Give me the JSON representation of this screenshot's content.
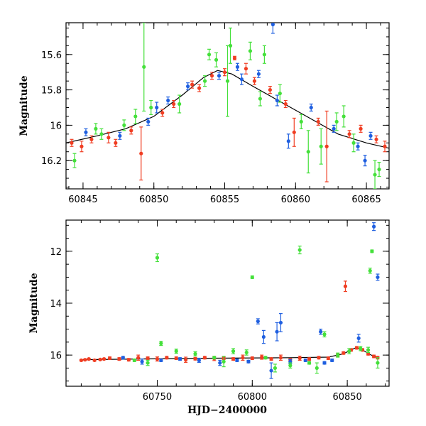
{
  "colors": {
    "green": "#44e03a",
    "blue": "#1f5fe0",
    "red": "#f03d22",
    "line": "#000000"
  },
  "chart_data": [
    {
      "type": "scatter",
      "name": "top-panel",
      "xlim": [
        60843.8,
        60866.6
      ],
      "ylim": [
        16.36,
        15.42
      ],
      "xticks": [
        60845,
        60850,
        60855,
        60860,
        60865
      ],
      "yticks": [
        15.6,
        15.8,
        16,
        16.2
      ],
      "xtick_labels": [
        "60845",
        "60850",
        "60855",
        "60860",
        "60865"
      ],
      "ytick_labels": [
        "15.6",
        "15.8",
        "16",
        "16.2"
      ],
      "xlabel": "",
      "ylabel": "Magnitude",
      "model_curve": {
        "x": [
          60843.8,
          60846,
          60848,
          60850,
          60852,
          60853.5,
          60854.5,
          60855.5,
          60857,
          60859,
          60861,
          60863,
          60865,
          60866.6
        ],
        "y": [
          16.1,
          16.06,
          16.02,
          15.95,
          15.83,
          15.73,
          15.69,
          15.71,
          15.78,
          15.87,
          15.96,
          16.05,
          16.1,
          16.13
        ]
      },
      "series": [
        {
          "color": "red",
          "x": [
            60844.2,
            60844.9,
            60845.6,
            60846.8,
            60847.3,
            60848.4,
            60849.1,
            60850.6,
            60851.4,
            60852.7,
            60853.2,
            60854.1,
            60855.0,
            60855.7,
            60856.5,
            60857.1,
            60858.2,
            60859.3,
            60859.9,
            60861.6,
            60862.2,
            60863.8,
            60864.6,
            60865.7,
            60866.3
          ],
          "y": [
            16.1,
            16.12,
            16.08,
            16.07,
            16.1,
            16.03,
            16.16,
            15.93,
            15.88,
            15.77,
            15.79,
            15.72,
            15.7,
            15.62,
            15.68,
            15.75,
            15.8,
            15.88,
            16.04,
            15.98,
            16.12,
            16.05,
            16.02,
            16.08,
            16.12
          ],
          "err": [
            0.02,
            0.03,
            0.02,
            0.03,
            0.02,
            0.02,
            0.15,
            0.02,
            0.02,
            0.02,
            0.02,
            0.02,
            0.02,
            0.01,
            0.03,
            0.02,
            0.02,
            0.02,
            0.08,
            0.02,
            0.2,
            0.02,
            0.02,
            0.02,
            0.03
          ]
        },
        {
          "color": "blue",
          "x": [
            60845.2,
            60847.6,
            60849.6,
            60850.2,
            60851.0,
            60852.4,
            60854.6,
            60855.9,
            60856.2,
            60857.4,
            60858.4,
            60858.7,
            60859.5,
            60861.1,
            60862.7,
            60864.4,
            60864.9,
            60865.3
          ],
          "y": [
            16.04,
            16.06,
            15.98,
            15.9,
            15.86,
            15.78,
            15.72,
            15.67,
            15.74,
            15.71,
            15.43,
            15.86,
            16.09,
            15.9,
            16.02,
            16.12,
            16.2,
            16.06
          ],
          "err": [
            0.02,
            0.02,
            0.02,
            0.03,
            0.02,
            0.02,
            0.02,
            0.02,
            0.03,
            0.02,
            0.05,
            0.03,
            0.04,
            0.02,
            0.02,
            0.02,
            0.03,
            0.02
          ]
        },
        {
          "color": "green",
          "x": [
            60844.4,
            60845.9,
            60846.3,
            60847.9,
            60848.7,
            60849.3,
            60849.8,
            60851.8,
            60853.6,
            60853.9,
            60854.4,
            60855.2,
            60855.4,
            60856.8,
            60857.5,
            60857.8,
            60858.9,
            60860.4,
            60860.9,
            60861.8,
            60862.9,
            60863.4,
            60864.1,
            60865.6,
            60865.9
          ],
          "y": [
            16.2,
            16.02,
            16.05,
            16.0,
            15.95,
            15.67,
            15.9,
            15.88,
            15.75,
            15.6,
            15.63,
            15.75,
            15.55,
            15.58,
            15.85,
            15.6,
            15.82,
            15.98,
            16.15,
            16.12,
            15.98,
            15.95,
            16.1,
            16.28,
            16.25
          ],
          "err": [
            0.04,
            0.03,
            0.03,
            0.03,
            0.04,
            0.25,
            0.04,
            0.05,
            0.03,
            0.03,
            0.04,
            0.2,
            0.1,
            0.05,
            0.04,
            0.05,
            0.05,
            0.04,
            0.12,
            0.1,
            0.05,
            0.06,
            0.05,
            0.08,
            0.04
          ]
        }
      ]
    },
    {
      "type": "scatter",
      "name": "bottom-panel",
      "xlim": [
        60702,
        60872
      ],
      "ylim": [
        17.2,
        10.8
      ],
      "xticks": [
        60750,
        60800,
        60850
      ],
      "yticks": [
        12,
        14,
        16
      ],
      "xtick_labels": [
        "60750",
        "60800",
        "60850"
      ],
      "ytick_labels": [
        "12",
        "14",
        "16"
      ],
      "xlabel": "HJD−2400000",
      "ylabel": "Magnitude",
      "model_curve": {
        "x": [
          60710,
          60740,
          60780,
          60820,
          60840,
          60848,
          60852,
          60855,
          60858,
          60862,
          60866
        ],
        "y": [
          16.18,
          16.15,
          16.12,
          16.1,
          16.08,
          15.95,
          15.8,
          15.7,
          15.8,
          15.98,
          16.1
        ]
      },
      "series": [
        {
          "color": "red",
          "x": [
            60710,
            60712,
            60714,
            60717,
            60720,
            60722,
            60725,
            60730,
            60735,
            60740,
            60745,
            60750,
            60755,
            60760,
            60765,
            60770,
            60775,
            60780,
            60785,
            60790,
            60795,
            60800,
            60805,
            60810,
            60815,
            60820,
            60825,
            60830,
            60835,
            60840,
            60845,
            60848,
            60849,
            60852,
            60855,
            60858,
            60861,
            60864,
            60866
          ],
          "y": [
            16.2,
            16.18,
            16.15,
            16.2,
            16.17,
            16.15,
            16.12,
            16.15,
            16.18,
            16.1,
            16.12,
            16.15,
            16.1,
            16.12,
            16.18,
            16.14,
            16.1,
            16.13,
            16.12,
            16.15,
            16.1,
            16.12,
            16.08,
            16.15,
            16.1,
            16.18,
            16.12,
            16.15,
            16.1,
            16.12,
            16.0,
            15.92,
            13.35,
            15.8,
            15.72,
            15.8,
            15.95,
            16.05,
            16.1
          ],
          "err": [
            0.03,
            0.03,
            0.03,
            0.03,
            0.03,
            0.03,
            0.05,
            0.05,
            0.05,
            0.1,
            0.05,
            0.08,
            0.05,
            0.05,
            0.1,
            0.05,
            0.05,
            0.08,
            0.05,
            0.05,
            0.1,
            0.05,
            0.08,
            0.05,
            0.1,
            0.05,
            0.08,
            0.05,
            0.05,
            0.05,
            0.05,
            0.05,
            0.2,
            0.05,
            0.05,
            0.05,
            0.05,
            0.05,
            0.05
          ]
        },
        {
          "color": "blue",
          "x": [
            60732,
            60742,
            60752,
            60762,
            60772,
            60783,
            60792,
            60798,
            60803,
            60806,
            60810,
            60813,
            60815,
            60820,
            60828,
            60836,
            60838,
            60842,
            60856,
            60864,
            60866
          ],
          "y": [
            16.1,
            16.25,
            16.2,
            16.15,
            16.2,
            16.3,
            16.2,
            16.25,
            14.7,
            15.3,
            16.6,
            15.1,
            14.75,
            16.25,
            16.2,
            15.1,
            16.3,
            16.2,
            15.35,
            11.05,
            13.0
          ],
          "err": [
            0.05,
            0.1,
            0.05,
            0.05,
            0.08,
            0.1,
            0.05,
            0.05,
            0.1,
            0.25,
            0.3,
            0.35,
            0.35,
            0.08,
            0.05,
            0.1,
            0.05,
            0.05,
            0.15,
            0.15,
            0.12
          ]
        },
        {
          "color": "green",
          "x": [
            60738,
            60745,
            60750,
            60752,
            60760,
            60770,
            60780,
            60785,
            60790,
            60797,
            60800,
            60807,
            60812,
            60820,
            60825,
            60830,
            60834,
            60838,
            60845,
            60851,
            60857,
            60861,
            60862,
            60863,
            60866
          ],
          "y": [
            16.2,
            16.3,
            12.25,
            15.55,
            15.85,
            15.95,
            16.1,
            16.25,
            15.85,
            15.9,
            13.0,
            16.1,
            16.5,
            16.4,
            11.95,
            16.3,
            16.5,
            15.2,
            16.0,
            15.85,
            15.75,
            15.8,
            12.75,
            12.0,
            16.3
          ],
          "err": [
            0.05,
            0.1,
            0.15,
            0.08,
            0.08,
            0.08,
            0.05,
            0.2,
            0.1,
            0.1,
            0.05,
            0.05,
            0.15,
            0.1,
            0.15,
            0.05,
            0.2,
            0.1,
            0.08,
            0.1,
            0.08,
            0.1,
            0.1,
            0.05,
            0.2
          ]
        }
      ]
    }
  ]
}
